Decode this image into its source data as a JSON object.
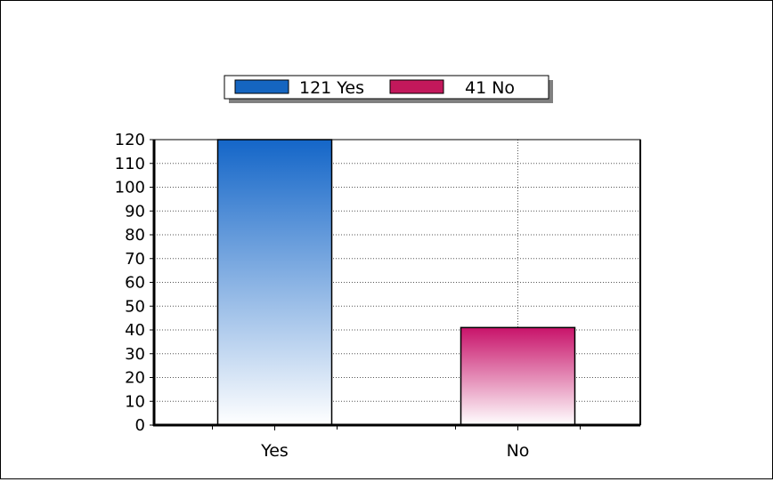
{
  "chart_data": {
    "type": "bar",
    "categories": [
      "Yes",
      "No"
    ],
    "values": [
      121,
      41
    ],
    "ylim": [
      0,
      120
    ],
    "yticks": [
      0,
      10,
      20,
      30,
      40,
      50,
      60,
      70,
      80,
      90,
      100,
      110,
      120
    ],
    "grid": true,
    "legend_position": "top-center",
    "legend": [
      {
        "label": "121 Yes",
        "color": "#1565c0"
      },
      {
        "label": "41 No",
        "color": "#c2185b"
      }
    ],
    "colors": {
      "Yes": {
        "top": "#1466c8",
        "bottom": "#ffffff"
      },
      "No": {
        "top": "#c8136a",
        "bottom": "#ffffff"
      }
    }
  }
}
